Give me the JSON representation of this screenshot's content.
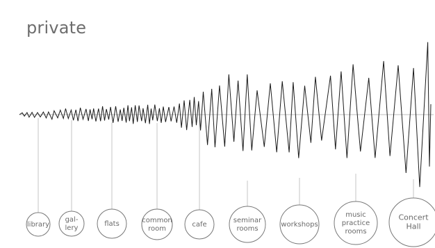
{
  "heading": "private",
  "nodes": [
    {
      "id": "library",
      "lines": [
        "library"
      ]
    },
    {
      "id": "gallery",
      "lines": [
        "gal-",
        "lery"
      ]
    },
    {
      "id": "flats",
      "lines": [
        "flats"
      ]
    },
    {
      "id": "common-room",
      "lines": [
        "common",
        "room"
      ]
    },
    {
      "id": "cafe",
      "lines": [
        "cafe"
      ]
    },
    {
      "id": "seminar-rooms",
      "lines": [
        "seminar",
        "rooms"
      ]
    },
    {
      "id": "workshops",
      "lines": [
        "workshops"
      ]
    },
    {
      "id": "music-practice-rooms",
      "lines": [
        "music",
        "practice",
        "rooms"
      ]
    },
    {
      "id": "concert-hall",
      "lines": [
        "Concert",
        "Hall"
      ]
    }
  ],
  "colors": {
    "wave": "#1a1a1a",
    "axis": "#bdbdbd",
    "connector": "#c6c6c6",
    "circle": "#777777",
    "text": "#6a6a6a"
  }
}
